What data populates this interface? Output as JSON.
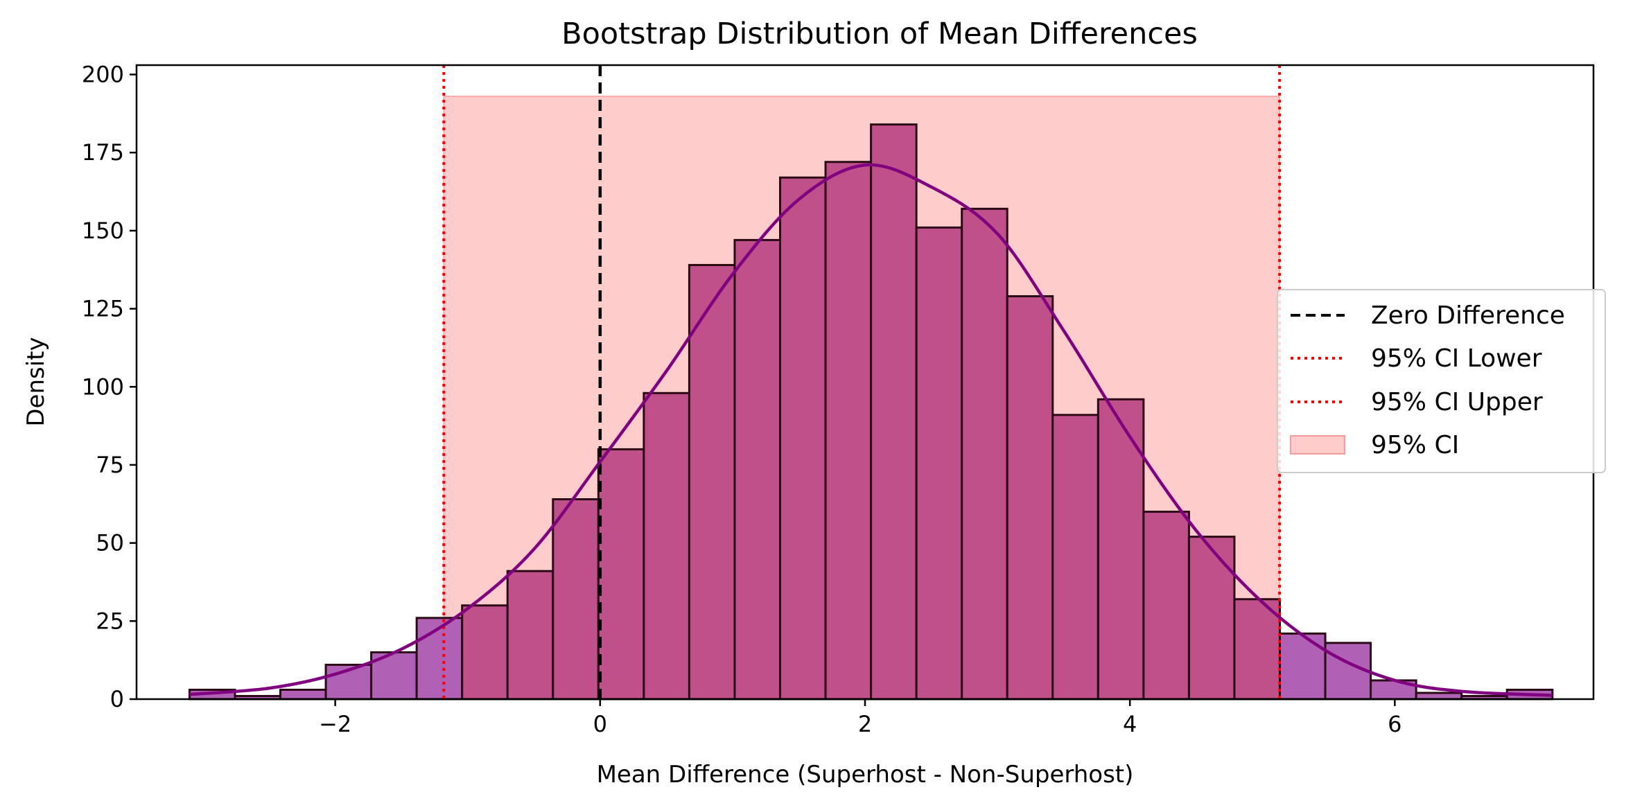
{
  "chart_data": {
    "type": "histogram",
    "title": "Bootstrap Distribution of Mean Differences",
    "xlabel": "Mean Difference (Superhost - Non-Superhost)",
    "ylabel": "Density",
    "xlim": [
      -3.5,
      7.5
    ],
    "ylim": [
      0,
      203
    ],
    "xticks": [
      -2,
      0,
      2,
      4,
      6
    ],
    "xtick_labels": [
      "−2",
      "0",
      "2",
      "4",
      "6"
    ],
    "yticks": [
      0,
      25,
      50,
      75,
      100,
      125,
      150,
      175,
      200
    ],
    "ytick_labels": [
      "0",
      "25",
      "50",
      "75",
      "100",
      "125",
      "150",
      "175",
      "200"
    ],
    "grid": false,
    "legend_position": "center-right",
    "bins": {
      "edges": [
        -3.1,
        -2.757,
        -2.414,
        -2.071,
        -1.728,
        -1.385,
        -1.042,
        -0.699,
        -0.356,
        -0.013,
        0.33,
        0.673,
        1.016,
        1.359,
        1.702,
        2.045,
        2.388,
        2.731,
        3.074,
        3.417,
        3.76,
        4.103,
        4.446,
        4.789,
        5.132,
        5.475,
        5.818,
        6.161,
        6.504,
        6.847,
        7.19
      ],
      "counts": [
        3,
        1,
        3,
        11,
        15,
        26,
        30,
        41,
        64,
        80,
        98,
        139,
        147,
        167,
        172,
        184,
        151,
        157,
        129,
        91,
        96,
        60,
        52,
        32,
        21,
        18,
        6,
        2,
        1,
        3
      ]
    },
    "kde": {
      "x": [
        -3.1,
        -2.5,
        -2.0,
        -1.5,
        -1.0,
        -0.5,
        0.0,
        0.5,
        1.0,
        1.5,
        2.0,
        2.5,
        3.0,
        3.5,
        4.0,
        4.5,
        5.0,
        5.5,
        6.0,
        6.5,
        7.19
      ],
      "y": [
        1.5,
        3.5,
        8,
        16,
        29,
        48,
        76,
        105,
        136,
        160,
        171,
        164,
        149,
        118,
        84,
        54,
        31,
        15,
        6,
        2.5,
        1.2
      ]
    },
    "reference_lines": {
      "zero": 0,
      "ci_lower": -1.18,
      "ci_upper": 5.13
    },
    "ci_band_top": 193,
    "legend": [
      {
        "label": "Zero Difference",
        "style": "dashed-black"
      },
      {
        "label": "95% CI Lower",
        "style": "dotted-red"
      },
      {
        "label": "95% CI Upper",
        "style": "dotted-red"
      },
      {
        "label": "95% CI",
        "style": "patch-pink"
      }
    ],
    "colors": {
      "bar_inside_ci": "#c0508a",
      "bar_outside_ci": "#b060b5",
      "bar_edge": "#2a0a14",
      "kde": "#800080",
      "ci_band": "#ffcccc",
      "ci_lines": "#ff0000",
      "zero_line": "#000000"
    }
  }
}
